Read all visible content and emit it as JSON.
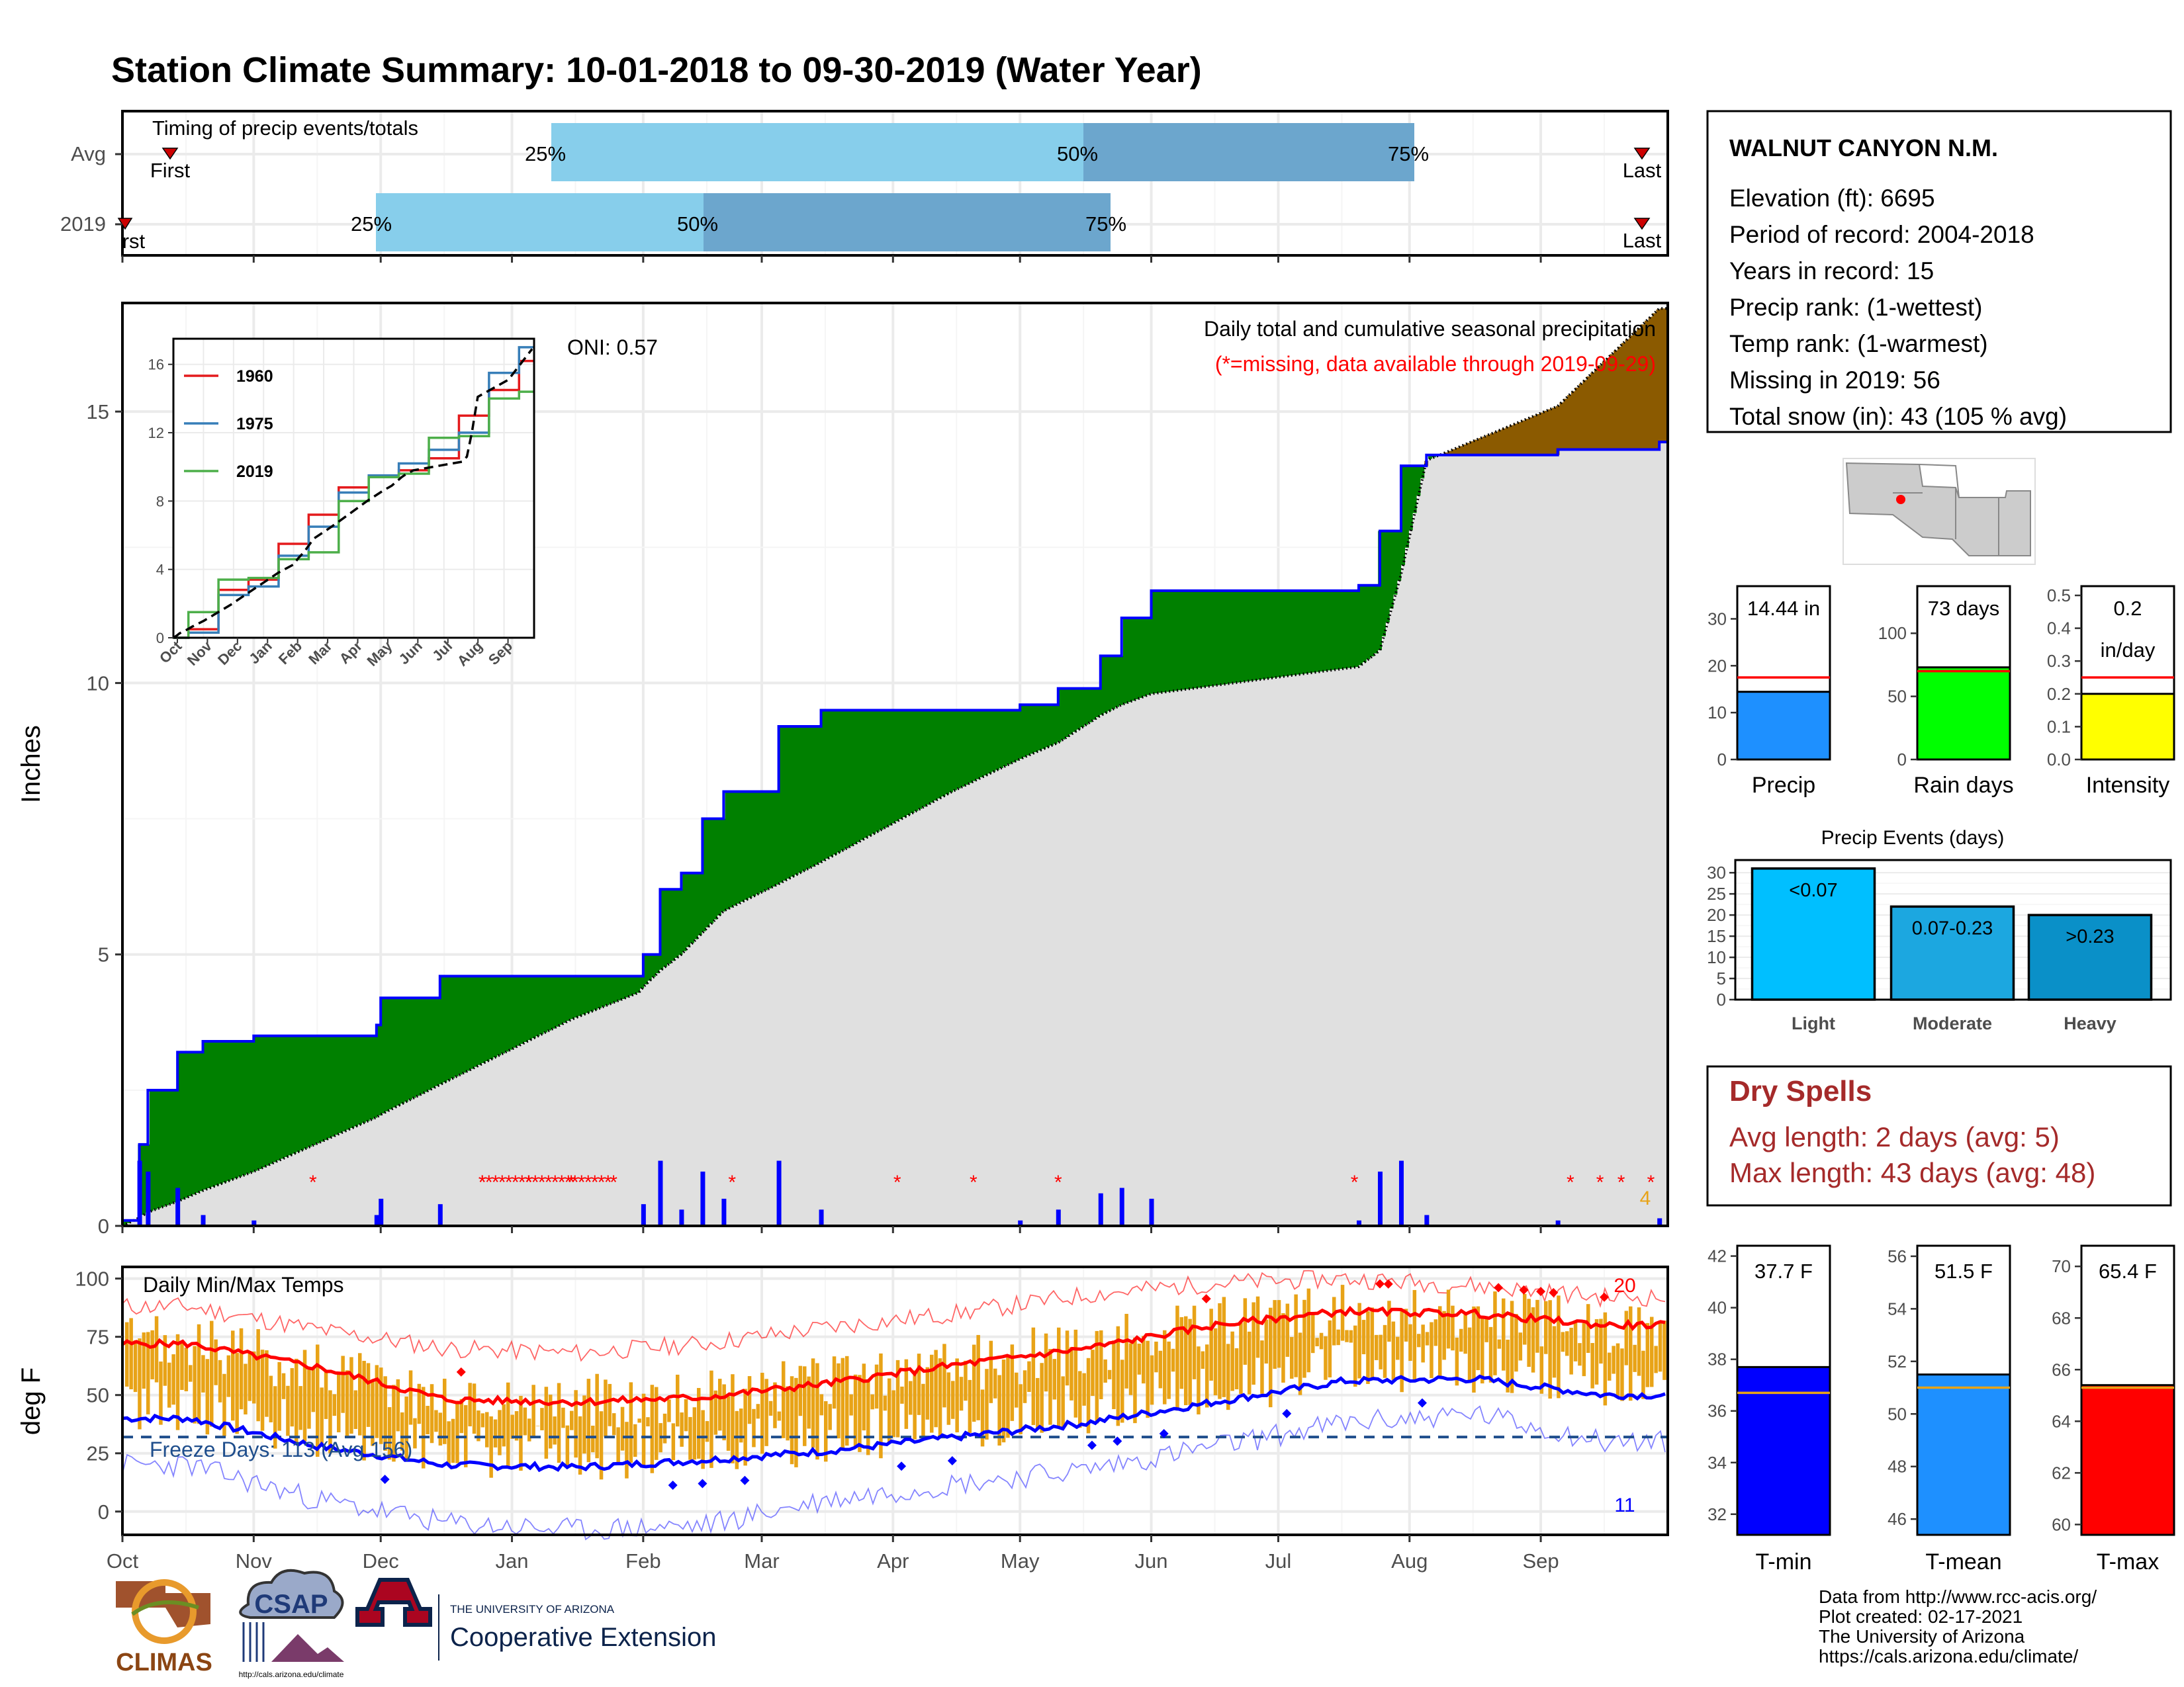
{
  "title": "Station Climate Summary: 10-01-2018 to 09-30-2019 (Water Year)",
  "colors": {
    "title": "#8B2500",
    "light_blue": "#87CEEB",
    "mid_blue": "#6CA6CD",
    "green": "#008000",
    "brown": "#8B5A00",
    "gray_fill": "#E0E0E0",
    "blue": "#0000FF",
    "red": "#FF0000",
    "orange": "#E8A317",
    "dark_red": "#A52A2A"
  },
  "timing": {
    "label": "Timing of precip events/totals",
    "rows": [
      {
        "name": "Avg",
        "first_label": "First",
        "last_label": "Last",
        "q25": "25%",
        "q50": "50%",
        "q75": "75%"
      },
      {
        "name": "2019",
        "first_label": "First",
        "last_label": "Last",
        "q25": "25%",
        "q50": "50%",
        "q75": "75%"
      }
    ]
  },
  "precip_panel": {
    "ylabel": "Inches",
    "heading": "Daily total and cumulative seasonal precipitation",
    "subheading": "(*=missing, data available through 2019-09-29)",
    "oni": "ONI: 0.57",
    "yticks": [
      "0",
      "5",
      "10",
      "15"
    ],
    "corner_count": "4"
  },
  "inset": {
    "legend": [
      "1960",
      "1975",
      "2019"
    ],
    "legend_colors": [
      "#E41A1C",
      "#377EB8",
      "#4DAF4A"
    ],
    "yticks": [
      "0",
      "4",
      "8",
      "12",
      "16"
    ],
    "xticks": [
      "Oct",
      "Nov",
      "Dec",
      "Jan",
      "Feb",
      "Mar",
      "Apr",
      "May",
      "Jun",
      "Jul",
      "Aug",
      "Sep"
    ]
  },
  "temp_panel": {
    "ylabel": "deg F",
    "heading": "Daily Min/Max Temps",
    "freeze_label": "Freeze Days: 113 (Avg 156)",
    "yticks": [
      "0",
      "25",
      "50",
      "75",
      "100"
    ],
    "count_high": "20",
    "count_low": "11"
  },
  "months": [
    "Oct",
    "Nov",
    "Dec",
    "Jan",
    "Feb",
    "Mar",
    "Apr",
    "May",
    "Jun",
    "Jul",
    "Aug",
    "Sep"
  ],
  "station": {
    "name": "WALNUT CANYON N.M.",
    "lines": [
      "Elevation (ft): 6695",
      "Period of record: 2004-2018",
      "Years in record: 15",
      "Precip rank:  (1-wettest)",
      "Temp rank:  (1-warmest)",
      "Missing in 2019: 56",
      "Total snow (in): 43 (105 % avg)"
    ]
  },
  "mini_bars": [
    {
      "label": "Precip",
      "value_text": "14.44 in",
      "yticks": [
        "0",
        "10",
        "20",
        "30"
      ],
      "color": "#1E90FF"
    },
    {
      "label": "Rain days",
      "value_text": "73 days",
      "yticks": [
        "0",
        "50",
        "100"
      ],
      "color": "#00FF00"
    },
    {
      "label": "Intensity",
      "value_text": "0.2",
      "value_text2": "in/day",
      "yticks": [
        "0.0",
        "0.1",
        "0.2",
        "0.3",
        "0.4",
        "0.5"
      ],
      "color": "#FFFF00"
    }
  ],
  "events": {
    "title": "Precip Events (days)",
    "yticks": [
      "0",
      "5",
      "10",
      "15",
      "20",
      "25",
      "30"
    ],
    "bars": [
      {
        "name": "Light",
        "label": "<0.07",
        "color": "#00BFFF"
      },
      {
        "name": "Moderate",
        "label": "0.07-0.23",
        "color": "#1CA7E0"
      },
      {
        "name": "Heavy",
        "label": ">0.23",
        "color": "#0A90C8"
      }
    ]
  },
  "dry_spells": {
    "title": "Dry Spells",
    "line1": "Avg length: 2 days (avg: 5)",
    "line2": "Max length: 43 days (avg: 48)"
  },
  "temp_bars": [
    {
      "label": "T-min",
      "value_text": "37.7 F",
      "yticks": [
        "32",
        "34",
        "36",
        "38",
        "40",
        "42"
      ],
      "color": "#0000FF"
    },
    {
      "label": "T-mean",
      "value_text": "51.5 F",
      "yticks": [
        "46",
        "48",
        "50",
        "52",
        "54",
        "56"
      ],
      "color": "#1E90FF"
    },
    {
      "label": "T-max",
      "value_text": "65.4 F",
      "yticks": [
        "60",
        "62",
        "64",
        "66",
        "68",
        "70"
      ],
      "color": "#FF0000"
    }
  ],
  "footer": {
    "lines": [
      "Data from http://www.rcc-acis.org/",
      "Plot created: 02-17-2021",
      "The University of Arizona",
      "https://cals.arizona.edu/climate/"
    ]
  },
  "logos": {
    "climas": "CLIMAS",
    "csap": "CSAP",
    "csap_url": "http://cals.arizona.edu/climate",
    "ua_top": "THE UNIVERSITY OF ARIZONA",
    "ua_bottom": "Cooperative Extension"
  },
  "chart_data": [
    {
      "type": "bar",
      "title": "Timing of precip events/totals",
      "categories": [
        "Avg",
        "2019"
      ],
      "series": [
        {
          "name": "25%",
          "values": [
            "2019-01-06",
            "2018-11-30"
          ]
        },
        {
          "name": "50%",
          "values": [
            "2019-04-30",
            "2019-02-16"
          ]
        },
        {
          "name": "75%",
          "values": [
            "2019-08-01",
            "2019-05-20"
          ]
        }
      ],
      "first": [
        "2018-10-13",
        "2018-10-01"
      ],
      "last": [
        "2019-09-26",
        "2019-09-26"
      ]
    },
    {
      "type": "area",
      "title": "Daily total and cumulative seasonal precipitation",
      "ylabel": "Inches",
      "ylim": [
        0,
        17
      ],
      "x": [
        "2018-10-01",
        "2018-10-05",
        "2018-10-07",
        "2018-10-14",
        "2018-10-20",
        "2018-11-01",
        "2018-11-30",
        "2018-12-01",
        "2018-12-15",
        "2019-01-15",
        "2019-01-31",
        "2019-02-01",
        "2019-02-05",
        "2019-02-10",
        "2019-02-15",
        "2019-02-20",
        "2019-03-05",
        "2019-03-15",
        "2019-04-15",
        "2019-05-01",
        "2019-05-10",
        "2019-05-20",
        "2019-05-25",
        "2019-06-01",
        "2019-07-10",
        "2019-07-20",
        "2019-07-25",
        "2019-07-30",
        "2019-08-05",
        "2019-09-05",
        "2019-09-29"
      ],
      "series": [
        {
          "name": "2019",
          "values": [
            0.1,
            1.5,
            2.5,
            3.2,
            3.4,
            3.5,
            3.7,
            4.2,
            4.6,
            4.6,
            4.6,
            5.0,
            6.2,
            6.5,
            7.5,
            8.0,
            9.2,
            9.5,
            9.5,
            9.6,
            9.9,
            10.5,
            11.2,
            11.7,
            11.7,
            11.8,
            12.8,
            14.0,
            14.2,
            14.3,
            14.44
          ]
        },
        {
          "name": "Avg",
          "values": [
            0.0,
            0.15,
            0.25,
            0.45,
            0.65,
            1.0,
            2.0,
            2.05,
            2.6,
            3.8,
            4.3,
            4.4,
            4.7,
            5.0,
            5.4,
            5.8,
            6.3,
            6.7,
            8.0,
            8.6,
            8.9,
            9.4,
            9.6,
            9.8,
            10.2,
            10.3,
            10.6,
            12.0,
            14.1,
            15.1,
            16.9
          ]
        }
      ]
    },
    {
      "type": "line",
      "title": "",
      "ylim": [
        0,
        17
      ],
      "categories": [
        "Oct",
        "Nov",
        "Dec",
        "Jan",
        "Feb",
        "Mar",
        "Apr",
        "May",
        "Jun",
        "Jul",
        "Aug",
        "Sep"
      ],
      "series": [
        {
          "name": "1960",
          "values": [
            0.5,
            2.8,
            3.4,
            5.5,
            7.2,
            8.8,
            9.4,
            9.8,
            10.5,
            13.0,
            14.5,
            16.2
          ]
        },
        {
          "name": "1975",
          "values": [
            0.3,
            2.5,
            3.0,
            4.8,
            6.5,
            8.5,
            9.5,
            10.2,
            11.0,
            12.0,
            15.5,
            17.0
          ]
        },
        {
          "name": "2019",
          "values": [
            1.5,
            3.4,
            3.5,
            4.6,
            5.0,
            8.0,
            9.4,
            9.6,
            11.7,
            11.8,
            14.0,
            14.4
          ]
        }
      ]
    },
    {
      "type": "line",
      "title": "Daily Min/Max Temps",
      "ylabel": "deg F",
      "ylim": [
        -10,
        105
      ],
      "categories": [
        "Oct",
        "Nov",
        "Dec",
        "Jan",
        "Feb",
        "Mar",
        "Apr",
        "May",
        "Jun",
        "Jul",
        "Aug",
        "Sep"
      ],
      "series": [
        {
          "name": "Avg max",
          "values": [
            72,
            62,
            48,
            47,
            49,
            55,
            63,
            70,
            80,
            86,
            85,
            80
          ]
        },
        {
          "name": "Avg min",
          "values": [
            40,
            28,
            20,
            19,
            22,
            26,
            32,
            38,
            47,
            56,
            57,
            50
          ]
        },
        {
          "name": "Record max",
          "values": [
            88,
            78,
            70,
            68,
            72,
            79,
            85,
            93,
            98,
            100,
            97,
            92
          ]
        },
        {
          "name": "Record min",
          "values": [
            20,
            5,
            -5,
            -8,
            -6,
            5,
            12,
            18,
            28,
            38,
            42,
            30
          ]
        }
      ],
      "freeze_line": 32
    },
    {
      "type": "bar",
      "title": "",
      "categories": [
        "Precip",
        "Rain days",
        "Intensity"
      ],
      "series": [
        {
          "name": "2019",
          "values": [
            14.44,
            73,
            0.2
          ]
        },
        {
          "name": "Avg",
          "values": [
            17.5,
            70,
            0.25
          ]
        }
      ]
    },
    {
      "type": "bar",
      "title": "Precip Events (days)",
      "categories": [
        "Light",
        "Moderate",
        "Heavy"
      ],
      "values": [
        31,
        22,
        20
      ],
      "ylim": [
        0,
        33
      ]
    },
    {
      "type": "bar",
      "title": "",
      "categories": [
        "T-min",
        "T-mean",
        "T-max"
      ],
      "series": [
        {
          "name": "2019",
          "values": [
            37.7,
            51.5,
            65.4
          ]
        },
        {
          "name": "Avg",
          "values": [
            36.7,
            51.0,
            65.3
          ]
        }
      ]
    }
  ]
}
